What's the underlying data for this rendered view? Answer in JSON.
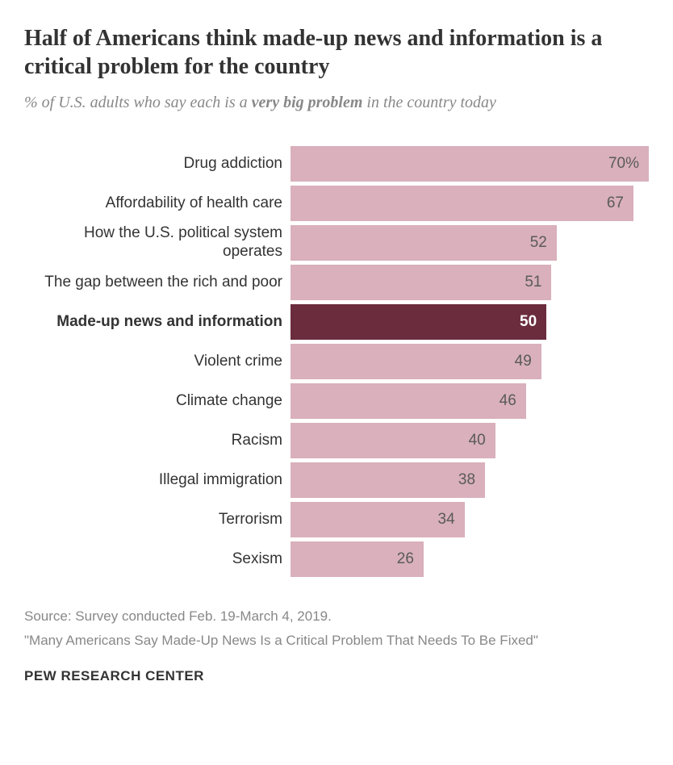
{
  "title": "Half of Americans think made-up news and information is a critical problem for the country",
  "subtitle_prefix": "% of U.S. adults who say each is a ",
  "subtitle_emphasis": "very big problem",
  "subtitle_suffix": " in the country today",
  "chart": {
    "type": "bar",
    "max_value": 70,
    "bar_color_default": "#d9b0bc",
    "bar_color_highlight": "#6b2c3e",
    "text_color_default": "#5a5a5a",
    "text_color_highlight": "#ffffff",
    "label_color": "#333333",
    "items": [
      {
        "label": "Drug addiction",
        "value": 70,
        "display_value": "70%",
        "highlighted": false
      },
      {
        "label": "Affordability of health care",
        "value": 67,
        "display_value": "67",
        "highlighted": false
      },
      {
        "label": "How the U.S. political system operates",
        "value": 52,
        "display_value": "52",
        "highlighted": false
      },
      {
        "label": "The gap between the rich and poor",
        "value": 51,
        "display_value": "51",
        "highlighted": false
      },
      {
        "label": "Made-up news and information",
        "value": 50,
        "display_value": "50",
        "highlighted": true
      },
      {
        "label": "Violent crime",
        "value": 49,
        "display_value": "49",
        "highlighted": false
      },
      {
        "label": "Climate change",
        "value": 46,
        "display_value": "46",
        "highlighted": false
      },
      {
        "label": "Racism",
        "value": 40,
        "display_value": "40",
        "highlighted": false
      },
      {
        "label": "Illegal immigration",
        "value": 38,
        "display_value": "38",
        "highlighted": false
      },
      {
        "label": "Terrorism",
        "value": 34,
        "display_value": "34",
        "highlighted": false
      },
      {
        "label": "Sexism",
        "value": 26,
        "display_value": "26",
        "highlighted": false
      }
    ]
  },
  "source_line1": "Source: Survey conducted Feb. 19-March 4, 2019.",
  "source_line2": "\"Many Americans Say Made-Up News Is a Critical Problem That Needs To Be Fixed\"",
  "attribution": "PEW RESEARCH CENTER"
}
